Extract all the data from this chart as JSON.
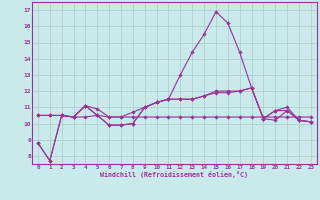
{
  "xlabel": "Windchill (Refroidissement éolien,°C)",
  "ylabel": "",
  "bg_color": "#c8eaea",
  "grid_color": "#b0c8c8",
  "line_color": "#993399",
  "xticks": [
    0,
    1,
    2,
    3,
    4,
    5,
    6,
    7,
    8,
    9,
    10,
    11,
    12,
    13,
    14,
    15,
    16,
    17,
    18,
    19,
    20,
    21,
    22,
    23
  ],
  "yticks": [
    8,
    9,
    10,
    11,
    12,
    13,
    14,
    15,
    16,
    17
  ],
  "xlim": [
    -0.5,
    23.5
  ],
  "ylim": [
    7.5,
    17.5
  ],
  "series": [
    [
      8.8,
      7.7,
      10.5,
      10.4,
      11.1,
      10.5,
      9.9,
      9.9,
      10.0,
      11.0,
      11.3,
      11.5,
      13.0,
      14.4,
      15.5,
      16.9,
      16.2,
      14.4,
      12.2,
      10.3,
      10.2,
      10.8,
      10.2,
      10.1
    ],
    [
      8.8,
      7.7,
      10.5,
      10.4,
      11.1,
      10.5,
      9.9,
      9.9,
      10.0,
      11.0,
      11.3,
      11.5,
      11.5,
      11.5,
      11.7,
      12.0,
      12.0,
      12.0,
      12.2,
      10.3,
      10.8,
      10.8,
      10.2,
      10.1
    ],
    [
      10.5,
      10.5,
      10.5,
      10.4,
      10.4,
      10.5,
      10.4,
      10.4,
      10.4,
      10.4,
      10.4,
      10.4,
      10.4,
      10.4,
      10.4,
      10.4,
      10.4,
      10.4,
      10.4,
      10.4,
      10.4,
      10.4,
      10.4,
      10.4
    ],
    [
      10.5,
      10.5,
      10.5,
      10.4,
      11.1,
      10.9,
      10.4,
      10.4,
      10.7,
      11.0,
      11.3,
      11.5,
      11.5,
      11.5,
      11.7,
      11.9,
      11.9,
      12.0,
      12.2,
      10.3,
      10.8,
      11.0,
      10.2,
      10.1
    ]
  ]
}
